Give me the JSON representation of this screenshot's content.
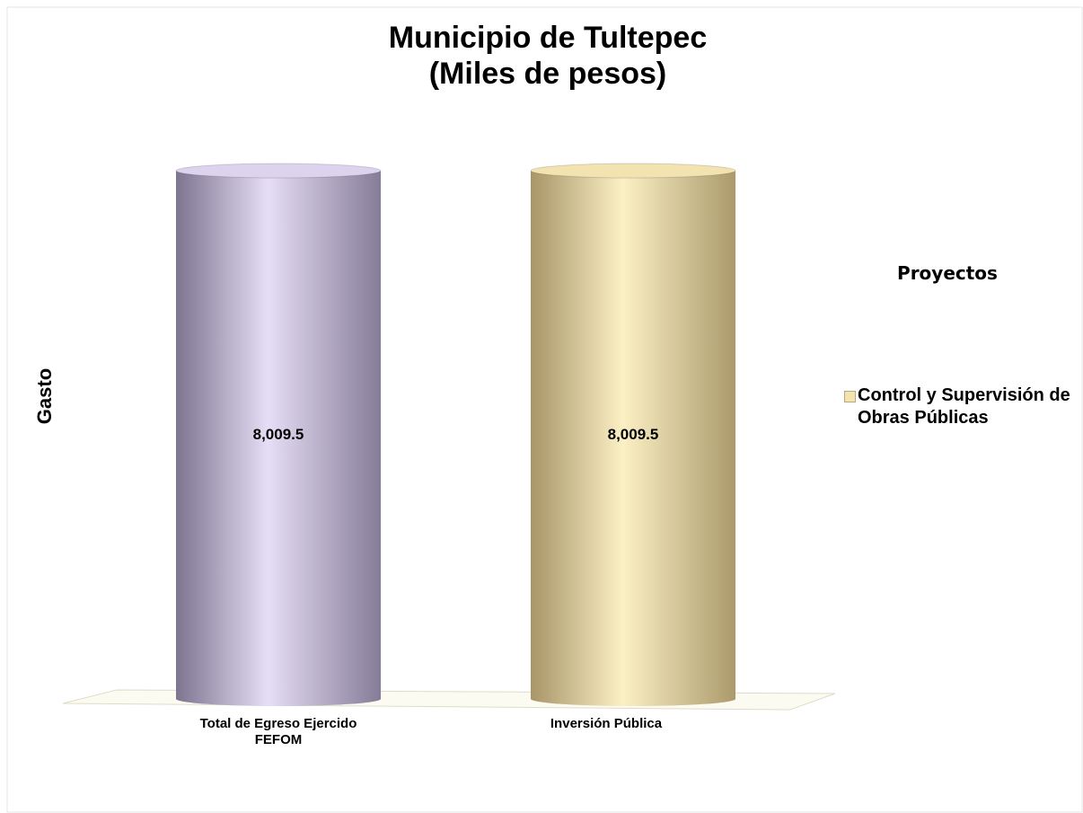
{
  "chart_data": {
    "type": "bar",
    "title": "Municipio de Tultepec\n(Miles de pesos)",
    "y_label": "Gasto",
    "legend_title": "Proyectos",
    "categories": [
      "Total de Egreso Ejercido FEFOM",
      "Inversión Pública"
    ],
    "series": [
      {
        "name": "Control y Supervisión de Obras Públicas",
        "color": "#f3e3b0",
        "colors": [
          "#ddd3ee",
          "#f3e3b0"
        ],
        "values": [
          8009.5,
          8009.5
        ],
        "value_labels": [
          "8,009.5",
          "8,009.5"
        ]
      }
    ]
  }
}
